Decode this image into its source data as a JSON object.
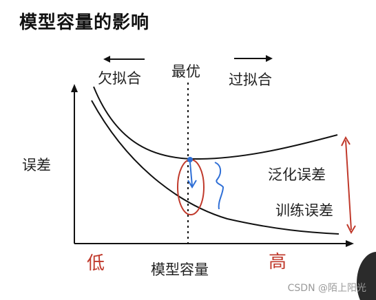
{
  "title": "模型容量的影响",
  "labels": {
    "underfit": "欠拟合",
    "optimal": "最优",
    "overfit": "过拟合",
    "y_axis": "误差",
    "x_axis": "模型容量",
    "generalization_error": "泛化误差",
    "training_error": "训练误差",
    "low": "低",
    "high": "高"
  },
  "watermark": "CSDN @陌上阳光",
  "colors": {
    "curve": "#111111",
    "annotation_red": "#c0392b",
    "annotation_blue": "#2f6fd6"
  }
}
